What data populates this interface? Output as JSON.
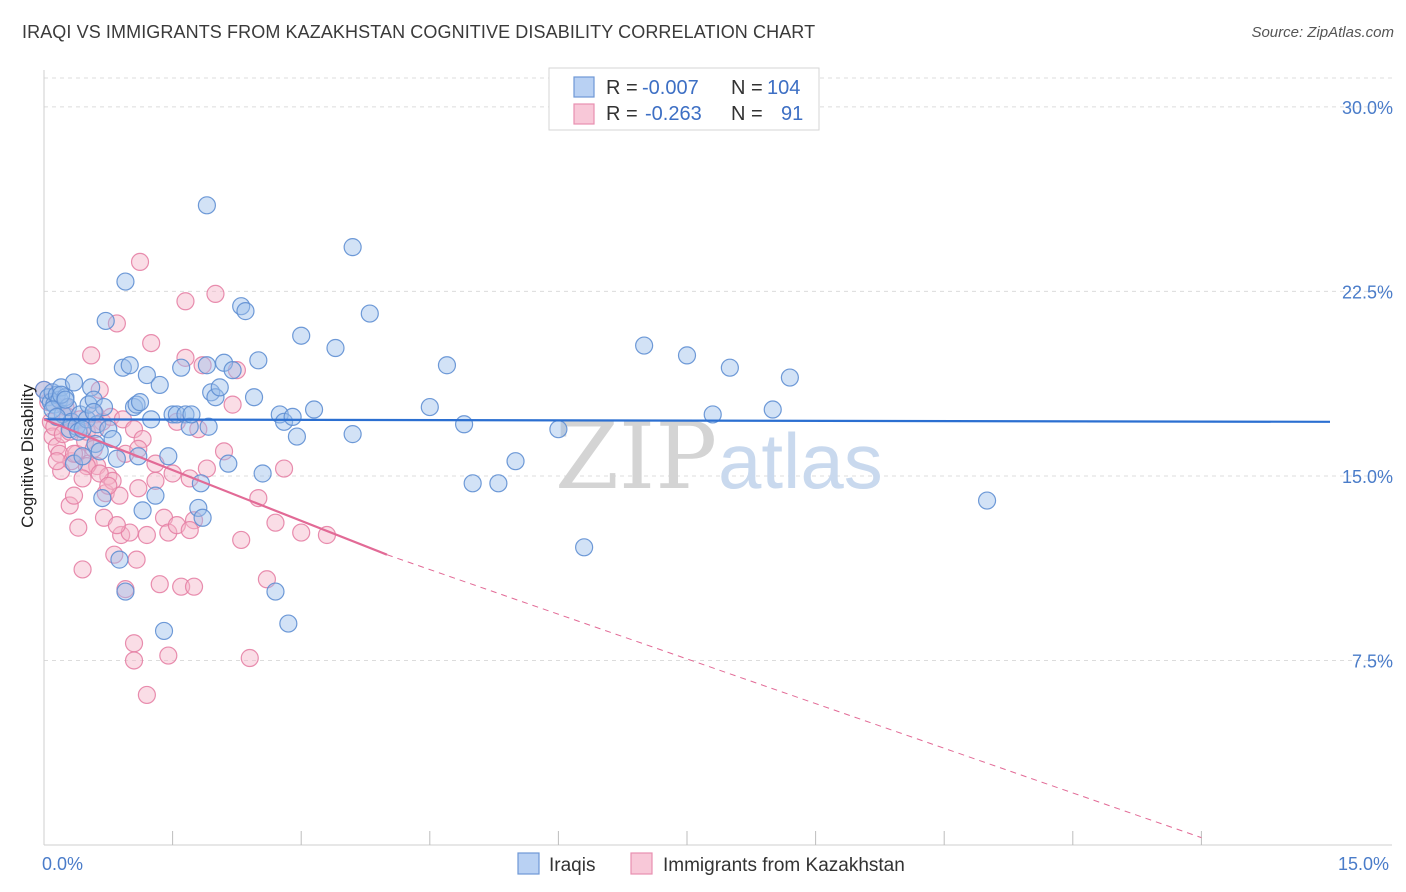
{
  "title": "IRAQI VS IMMIGRANTS FROM KAZAKHSTAN COGNITIVE DISABILITY CORRELATION CHART",
  "source": "Source: ZipAtlas.com",
  "watermark": {
    "zip": "ZIP",
    "atlas": "atlas"
  },
  "colors": {
    "blue_fill": "#9bbfec",
    "blue_stroke": "#5f8fd3",
    "blue_line": "#2b6fd1",
    "pink_fill": "#f4b3c8",
    "pink_stroke": "#e681a5",
    "pink_line": "#e26a96",
    "tick_text": "#4a7cc9",
    "grid": "#dcdcdc"
  },
  "legend": {
    "r_label": "R =",
    "n_label": "N =",
    "rows": [
      {
        "r": "-0.007",
        "n": "104",
        "series": "Iraqis"
      },
      {
        "r": "-0.263",
        "n": "91",
        "series": "Immigrants from Kazakhstan"
      }
    ]
  },
  "chart_data": {
    "type": "scatter",
    "title": "IRAQI VS IMMIGRANTS FROM KAZAKHSTAN COGNITIVE DISABILITY CORRELATION CHART",
    "xlabel": "",
    "ylabel": "Cognitive Disability",
    "xlim": [
      0,
      15
    ],
    "ylim": [
      0,
      31.5
    ],
    "x_tick_labels": [
      "0.0%",
      "15.0%"
    ],
    "y_ticks": [
      7.5,
      15.0,
      22.5,
      30.0
    ],
    "y_tick_labels": [
      "7.5%",
      "15.0%",
      "22.5%",
      "30.0%"
    ],
    "series": [
      {
        "name": "Iraqis",
        "trend": {
          "x0": 0,
          "y0": 17.3,
          "x1": 15,
          "y1": 17.2,
          "style": "solid"
        },
        "points": [
          [
            0.0,
            18.5
          ],
          [
            0.05,
            18.2
          ],
          [
            0.08,
            18.0
          ],
          [
            0.1,
            18.4
          ],
          [
            0.12,
            17.9
          ],
          [
            0.15,
            18.3
          ],
          [
            0.18,
            18.1
          ],
          [
            0.2,
            18.6
          ],
          [
            0.22,
            17.5
          ],
          [
            0.25,
            18.2
          ],
          [
            0.28,
            17.8
          ],
          [
            0.3,
            16.9
          ],
          [
            0.32,
            17.2
          ],
          [
            0.35,
            15.5
          ],
          [
            0.38,
            17.0
          ],
          [
            0.4,
            16.8
          ],
          [
            0.42,
            17.5
          ],
          [
            0.45,
            15.8
          ],
          [
            0.5,
            17.3
          ],
          [
            0.52,
            17.9
          ],
          [
            0.55,
            18.6
          ],
          [
            0.58,
            18.1
          ],
          [
            0.6,
            16.3
          ],
          [
            0.62,
            17.1
          ],
          [
            0.65,
            16.0
          ],
          [
            0.68,
            14.1
          ],
          [
            0.7,
            17.8
          ],
          [
            0.72,
            21.3
          ],
          [
            0.75,
            16.9
          ],
          [
            0.8,
            16.5
          ],
          [
            0.85,
            15.7
          ],
          [
            0.88,
            11.6
          ],
          [
            0.92,
            19.4
          ],
          [
            0.95,
            10.3
          ],
          [
            1.0,
            19.5
          ],
          [
            1.05,
            17.8
          ],
          [
            1.08,
            17.9
          ],
          [
            1.1,
            15.8
          ],
          [
            1.12,
            18.0
          ],
          [
            1.15,
            13.6
          ],
          [
            1.2,
            19.1
          ],
          [
            1.25,
            17.3
          ],
          [
            1.3,
            14.2
          ],
          [
            1.35,
            18.7
          ],
          [
            1.4,
            8.7
          ],
          [
            1.45,
            15.8
          ],
          [
            1.5,
            17.5
          ],
          [
            1.55,
            17.5
          ],
          [
            1.6,
            19.4
          ],
          [
            1.65,
            17.5
          ],
          [
            1.7,
            17.0
          ],
          [
            1.72,
            17.5
          ],
          [
            1.8,
            13.7
          ],
          [
            1.83,
            14.7
          ],
          [
            1.85,
            13.3
          ],
          [
            1.9,
            19.5
          ],
          [
            1.92,
            17.0
          ],
          [
            1.95,
            18.4
          ],
          [
            2.0,
            18.2
          ],
          [
            2.05,
            18.6
          ],
          [
            2.1,
            19.6
          ],
          [
            2.15,
            15.5
          ],
          [
            2.2,
            19.3
          ],
          [
            2.3,
            21.9
          ],
          [
            2.35,
            21.7
          ],
          [
            2.45,
            18.2
          ],
          [
            2.5,
            19.7
          ],
          [
            2.55,
            15.1
          ],
          [
            2.7,
            10.3
          ],
          [
            2.75,
            17.5
          ],
          [
            2.8,
            17.2
          ],
          [
            2.85,
            9.0
          ],
          [
            2.9,
            17.4
          ],
          [
            2.95,
            16.6
          ],
          [
            3.0,
            20.7
          ],
          [
            3.15,
            17.7
          ],
          [
            3.4,
            20.2
          ],
          [
            3.6,
            24.3
          ],
          [
            3.6,
            16.7
          ],
          [
            3.8,
            21.6
          ],
          [
            4.5,
            17.8
          ],
          [
            4.7,
            19.5
          ],
          [
            4.9,
            17.1
          ],
          [
            5.0,
            14.7
          ],
          [
            5.3,
            14.7
          ],
          [
            5.5,
            15.6
          ],
          [
            6.0,
            16.9
          ],
          [
            6.3,
            12.1
          ],
          [
            7.0,
            20.3
          ],
          [
            7.5,
            19.9
          ],
          [
            7.8,
            17.5
          ],
          [
            8.0,
            19.4
          ],
          [
            8.5,
            17.7
          ],
          [
            8.7,
            19.0
          ],
          [
            11.0,
            14.0
          ],
          [
            1.9,
            26.0
          ],
          [
            0.95,
            22.9
          ],
          [
            0.35,
            18.8
          ],
          [
            0.2,
            18.3
          ],
          [
            0.1,
            17.7
          ],
          [
            0.15,
            17.4
          ],
          [
            0.25,
            18.1
          ],
          [
            0.45,
            16.9
          ],
          [
            0.58,
            17.6
          ]
        ]
      },
      {
        "name": "Immigrants from Kazakhstan",
        "trend": {
          "x0": 0,
          "y0": 17.3,
          "x1": 4.0,
          "y1": 11.8,
          "x_dash_end": 13.5,
          "y_dash_end": 0.3,
          "style": "solid-then-dashed"
        },
        "points": [
          [
            0.0,
            18.5
          ],
          [
            0.05,
            18.0
          ],
          [
            0.08,
            17.2
          ],
          [
            0.1,
            16.6
          ],
          [
            0.12,
            17.0
          ],
          [
            0.15,
            16.2
          ],
          [
            0.18,
            15.9
          ],
          [
            0.2,
            15.2
          ],
          [
            0.22,
            16.7
          ],
          [
            0.25,
            17.8
          ],
          [
            0.28,
            17.4
          ],
          [
            0.3,
            13.8
          ],
          [
            0.32,
            15.6
          ],
          [
            0.35,
            14.2
          ],
          [
            0.38,
            15.9
          ],
          [
            0.4,
            12.9
          ],
          [
            0.42,
            17.3
          ],
          [
            0.45,
            11.2
          ],
          [
            0.48,
            16.4
          ],
          [
            0.5,
            16.8
          ],
          [
            0.52,
            15.5
          ],
          [
            0.55,
            19.9
          ],
          [
            0.58,
            16.1
          ],
          [
            0.6,
            17.5
          ],
          [
            0.62,
            15.4
          ],
          [
            0.65,
            18.5
          ],
          [
            0.68,
            17.2
          ],
          [
            0.7,
            13.3
          ],
          [
            0.72,
            14.3
          ],
          [
            0.75,
            15.0
          ],
          [
            0.78,
            17.4
          ],
          [
            0.8,
            14.8
          ],
          [
            0.82,
            11.8
          ],
          [
            0.85,
            21.2
          ],
          [
            0.88,
            14.2
          ],
          [
            0.9,
            12.6
          ],
          [
            0.92,
            17.3
          ],
          [
            0.95,
            10.4
          ],
          [
            1.0,
            12.7
          ],
          [
            1.05,
            16.9
          ],
          [
            1.08,
            11.6
          ],
          [
            1.1,
            14.5
          ],
          [
            1.12,
            23.7
          ],
          [
            1.15,
            16.5
          ],
          [
            1.2,
            12.6
          ],
          [
            1.25,
            20.4
          ],
          [
            1.3,
            15.5
          ],
          [
            1.35,
            10.6
          ],
          [
            1.4,
            13.3
          ],
          [
            1.45,
            12.7
          ],
          [
            1.5,
            15.1
          ],
          [
            1.55,
            17.2
          ],
          [
            1.6,
            10.5
          ],
          [
            1.65,
            22.1
          ],
          [
            1.7,
            14.9
          ],
          [
            1.75,
            13.2
          ],
          [
            1.8,
            16.9
          ],
          [
            1.85,
            19.5
          ],
          [
            1.9,
            15.3
          ],
          [
            2.0,
            22.4
          ],
          [
            2.1,
            16.0
          ],
          [
            2.2,
            17.9
          ],
          [
            2.3,
            12.4
          ],
          [
            2.4,
            7.6
          ],
          [
            2.5,
            14.1
          ],
          [
            2.6,
            10.8
          ],
          [
            2.7,
            13.1
          ],
          [
            2.8,
            15.3
          ],
          [
            3.0,
            12.7
          ],
          [
            3.3,
            12.6
          ],
          [
            1.05,
            8.2
          ],
          [
            1.05,
            7.5
          ],
          [
            1.2,
            6.1
          ],
          [
            1.45,
            7.7
          ],
          [
            1.75,
            10.5
          ],
          [
            0.6,
            16.9
          ],
          [
            0.3,
            16.8
          ],
          [
            0.15,
            15.6
          ],
          [
            0.35,
            15.9
          ],
          [
            0.5,
            15.4
          ],
          [
            0.65,
            15.1
          ],
          [
            0.75,
            14.6
          ],
          [
            0.85,
            13.0
          ],
          [
            0.95,
            15.9
          ],
          [
            1.1,
            16.1
          ],
          [
            1.3,
            14.8
          ],
          [
            1.55,
            13.0
          ],
          [
            1.7,
            12.8
          ],
          [
            2.25,
            19.3
          ],
          [
            1.65,
            19.8
          ],
          [
            0.45,
            14.9
          ]
        ]
      }
    ],
    "x_minor_ticks": [
      1.5,
      3.0,
      4.5,
      6.0,
      7.5,
      9.0,
      10.5,
      12.0,
      13.5
    ]
  }
}
